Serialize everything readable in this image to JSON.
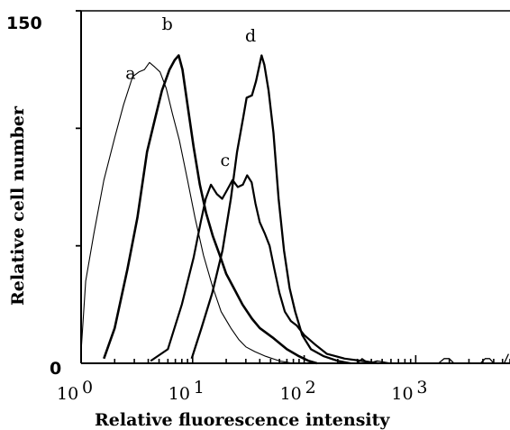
{
  "chart_data": {
    "type": "line",
    "title": "",
    "xlabel": "Relative fluorescence intensity",
    "ylabel": "Relative cell number",
    "x_scale": "log",
    "xlim": [
      1,
      7000
    ],
    "ylim": [
      0,
      150
    ],
    "x_ticks": [
      {
        "value": 1,
        "base": "10",
        "exp": "0"
      },
      {
        "value": 10,
        "base": "10",
        "exp": "1"
      },
      {
        "value": 100,
        "base": "10",
        "exp": "2"
      },
      {
        "value": 1000,
        "base": "10",
        "exp": "3"
      }
    ],
    "y_ticks": [
      {
        "value": 0,
        "label": "0"
      },
      {
        "value": 150,
        "label": "150"
      }
    ],
    "y_minor_ticks": [
      50,
      100,
      150
    ],
    "grid": false,
    "legend": "none",
    "series": [
      {
        "name": "a",
        "stroke_width": 1.1,
        "points": [
          [
            1.0,
            5
          ],
          [
            1.1,
            35
          ],
          [
            1.3,
            55
          ],
          [
            1.6,
            78
          ],
          [
            2.0,
            96
          ],
          [
            2.4,
            110
          ],
          [
            2.9,
            122
          ],
          [
            3.3,
            124
          ],
          [
            3.7,
            125
          ],
          [
            4.1,
            128
          ],
          [
            4.6,
            126
          ],
          [
            5.1,
            124
          ],
          [
            5.8,
            117
          ],
          [
            6.6,
            106
          ],
          [
            7.6,
            95
          ],
          [
            9.0,
            78
          ],
          [
            10.5,
            62
          ],
          [
            12.5,
            46
          ],
          [
            15,
            33
          ],
          [
            18,
            22
          ],
          [
            22,
            15
          ],
          [
            26,
            10
          ],
          [
            30,
            7
          ],
          [
            36,
            5
          ],
          [
            45,
            3
          ],
          [
            60,
            1
          ],
          [
            80,
            0
          ]
        ]
      },
      {
        "name": "b",
        "stroke_width": 2.6,
        "points": [
          [
            1.6,
            2
          ],
          [
            2.0,
            15
          ],
          [
            2.6,
            40
          ],
          [
            3.2,
            62
          ],
          [
            3.9,
            90
          ],
          [
            4.6,
            104
          ],
          [
            5.3,
            116
          ],
          [
            6.2,
            125
          ],
          [
            6.9,
            129
          ],
          [
            7.5,
            131
          ],
          [
            8.1,
            125
          ],
          [
            9.0,
            110
          ],
          [
            10.2,
            92
          ],
          [
            11.6,
            76
          ],
          [
            13.2,
            64
          ],
          [
            15.2,
            54
          ],
          [
            17.5,
            46
          ],
          [
            20,
            38
          ],
          [
            24,
            31
          ],
          [
            28,
            25
          ],
          [
            34,
            19
          ],
          [
            40,
            15
          ],
          [
            52,
            11
          ],
          [
            70,
            6
          ],
          [
            90,
            3
          ],
          [
            110,
            1
          ],
          [
            130,
            0
          ]
        ]
      },
      {
        "name": "c",
        "stroke_width": 2.2,
        "points": [
          [
            4.2,
            1
          ],
          [
            6.0,
            6
          ],
          [
            8.0,
            25
          ],
          [
            10.2,
            45
          ],
          [
            11.8,
            60
          ],
          [
            13.1,
            70
          ],
          [
            14.6,
            76
          ],
          [
            16.5,
            72
          ],
          [
            18.4,
            70
          ],
          [
            20.5,
            74
          ],
          [
            22.8,
            78
          ],
          [
            25.4,
            75
          ],
          [
            28.2,
            76
          ],
          [
            30.8,
            80
          ],
          [
            33.8,
            77
          ],
          [
            36.6,
            68
          ],
          [
            40,
            60
          ],
          [
            44.5,
            55
          ],
          [
            49,
            50
          ],
          [
            54,
            40
          ],
          [
            60,
            30
          ],
          [
            67,
            22
          ],
          [
            76,
            18
          ],
          [
            86,
            16
          ],
          [
            100,
            12
          ],
          [
            125,
            8
          ],
          [
            160,
            4
          ],
          [
            230,
            2
          ],
          [
            330,
            1
          ],
          [
            460,
            0
          ]
        ]
      },
      {
        "name": "d",
        "stroke_width": 2.3,
        "points": [
          [
            9.8,
            2
          ],
          [
            12,
            15
          ],
          [
            15,
            30
          ],
          [
            18.5,
            48
          ],
          [
            22,
            70
          ],
          [
            25,
            90
          ],
          [
            28.5,
            105
          ],
          [
            30.5,
            113
          ],
          [
            34,
            114
          ],
          [
            37,
            120
          ],
          [
            41.5,
            131
          ],
          [
            44,
            127
          ],
          [
            48,
            116
          ],
          [
            53,
            98
          ],
          [
            59,
            70
          ],
          [
            66,
            48
          ],
          [
            74,
            32
          ],
          [
            83,
            22
          ],
          [
            96,
            12
          ],
          [
            115,
            6
          ],
          [
            150,
            3
          ],
          [
            200,
            1
          ],
          [
            260,
            0
          ]
        ]
      },
      {
        "name": "",
        "stroke_width": 1.3,
        "points": [
          [
            150,
            0
          ],
          [
            300,
            0
          ],
          [
            330,
            2
          ],
          [
            380,
            0
          ],
          [
            450,
            1
          ],
          [
            600,
            0
          ],
          [
            900,
            0
          ],
          [
            1600,
            0
          ],
          [
            1800,
            2
          ],
          [
            2000,
            2
          ],
          [
            2200,
            0
          ],
          [
            3800,
            0
          ],
          [
            4200,
            2
          ],
          [
            4600,
            2
          ],
          [
            5000,
            0
          ],
          [
            6200,
            0
          ],
          [
            6800,
            4
          ]
        ]
      }
    ],
    "annotations": [
      {
        "text": "a",
        "x": 2.5,
        "y": 121
      },
      {
        "text": "b",
        "x": 5.3,
        "y": 142
      },
      {
        "text": "c",
        "x": 17.7,
        "y": 84
      },
      {
        "text": "d",
        "x": 29.5,
        "y": 137
      }
    ]
  }
}
